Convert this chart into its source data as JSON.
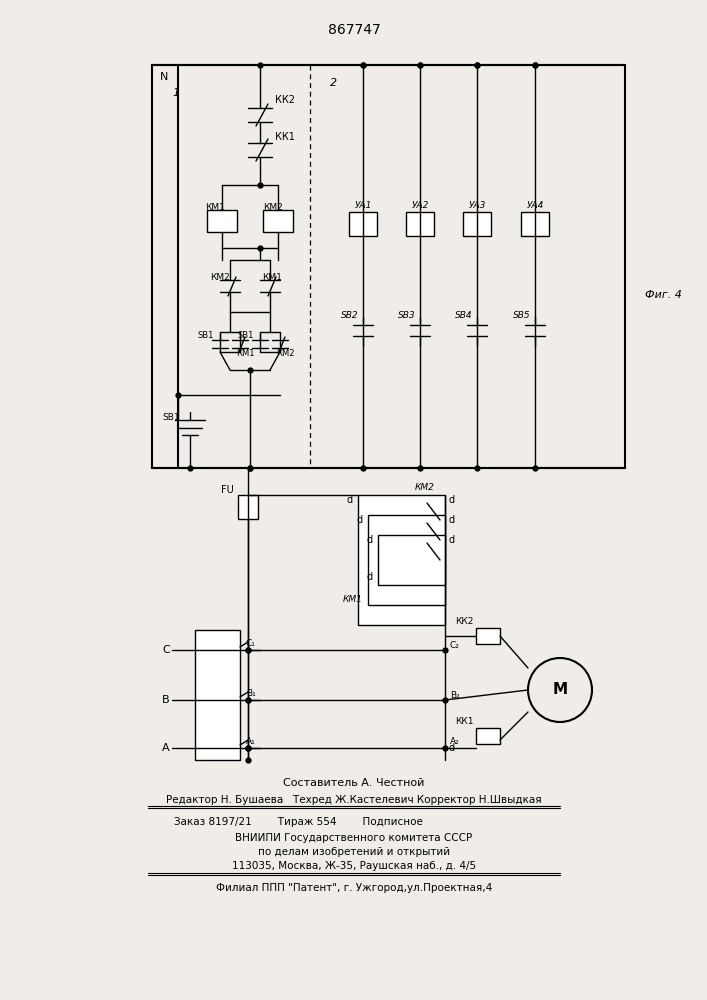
{
  "title": "867747",
  "fig4_label": "Фиг. 4",
  "footer_lines": [
    "Составитель А. Честной",
    "Редактор Н. Бушаева   Техред Ж.Кастелевич Корректор Н.Швыдкая",
    "Заказ 8197/21        Тираж 554        Подписное",
    "ВНИИПИ Государственного комитета СССР",
    "по делам изобретений и открытий",
    "113035, Москва, Ж-35, Раушская наб., д. 4/5",
    "Филиал ППП \"Патент\", г. Ужгород,ул.Проектная,4"
  ],
  "bg_color": "#f0ede8"
}
